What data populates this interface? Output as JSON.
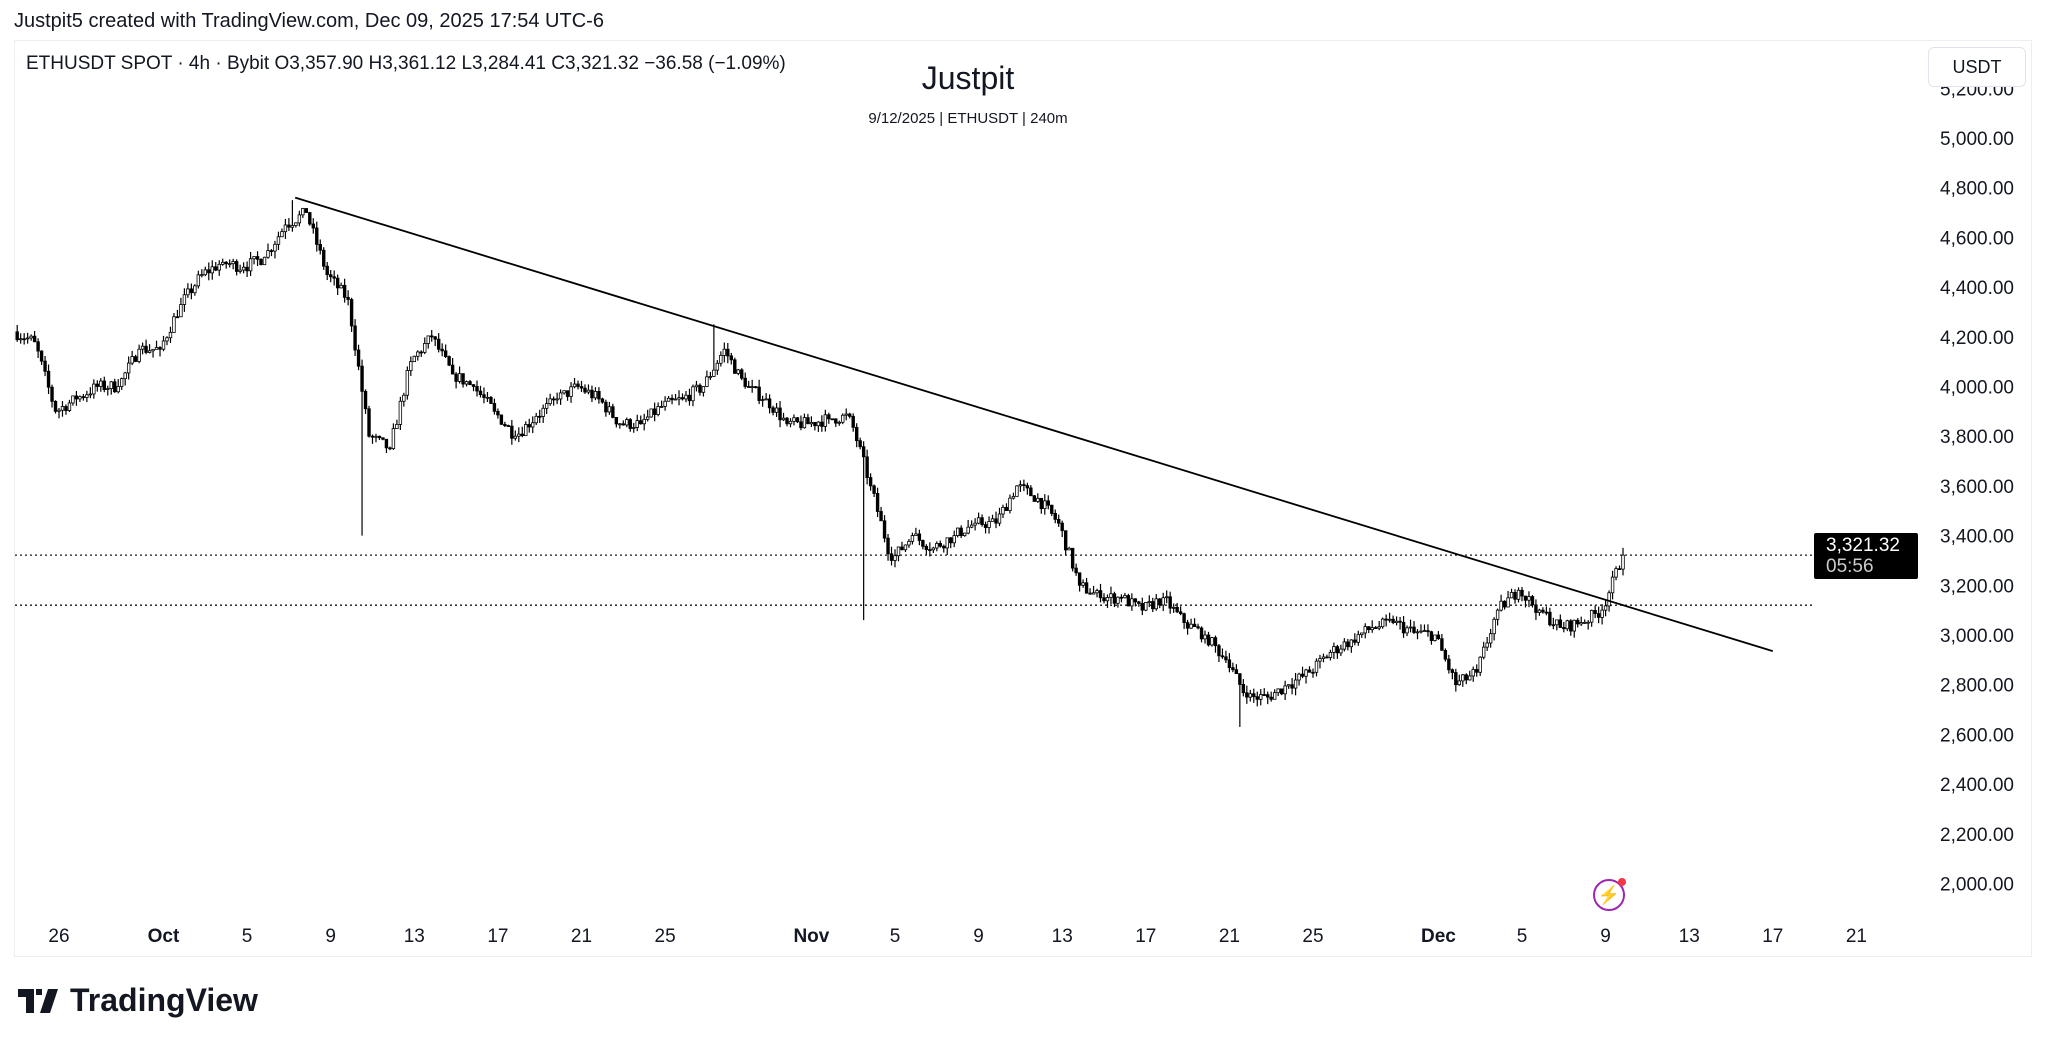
{
  "credit": "Justpit5 created with TradingView.com, Dec 09, 2025 17:54 UTC-6",
  "ohlc_line": "ETHUSDT SPOT · 4h · Bybit  O3,357.90  H3,361.12  L3,284.41  C3,321.32  −36.58 (−1.09%)",
  "currency_button": "USDT",
  "brand": "TradingView",
  "icons": {
    "logo": "tradingview-logo-icon",
    "bolt": "lightning-icon"
  },
  "chart_data": {
    "type": "candlestick",
    "title": "Justpit",
    "subtitle": "9/12/2025 | ETHUSDT | 240m",
    "symbol": "ETHUSDT",
    "interval": "4h",
    "ylim": [
      1900,
      5250
    ],
    "y_ticks": [
      "2,000.00",
      "2,200.00",
      "2,400.00",
      "2,600.00",
      "2,800.00",
      "3,000.00",
      "3,200.00",
      "3,400.00",
      "3,600.00",
      "3,800.00",
      "4,000.00",
      "4,200.00",
      "4,400.00",
      "4,600.00",
      "4,800.00",
      "5,000.00",
      "5,200.00"
    ],
    "x_ticks": [
      {
        "label": "26",
        "day": 0
      },
      {
        "label": "Oct",
        "day": 5,
        "bold": true
      },
      {
        "label": "5",
        "day": 9
      },
      {
        "label": "9",
        "day": 13
      },
      {
        "label": "13",
        "day": 17
      },
      {
        "label": "17",
        "day": 21
      },
      {
        "label": "21",
        "day": 25
      },
      {
        "label": "25",
        "day": 29
      },
      {
        "label": "Nov",
        "day": 36,
        "bold": true
      },
      {
        "label": "5",
        "day": 40
      },
      {
        "label": "9",
        "day": 44
      },
      {
        "label": "13",
        "day": 48
      },
      {
        "label": "17",
        "day": 52
      },
      {
        "label": "21",
        "day": 56
      },
      {
        "label": "25",
        "day": 60
      },
      {
        "label": "Dec",
        "day": 66,
        "bold": true
      },
      {
        "label": "5",
        "day": 70
      },
      {
        "label": "9",
        "day": 74
      },
      {
        "label": "13",
        "day": 78
      },
      {
        "label": "17",
        "day": 82
      },
      {
        "label": "21",
        "day": 86
      }
    ],
    "start_day_offset": -2,
    "daily_closes_from_sep24": [
      4180,
      3900,
      3950,
      4000,
      4000,
      4150,
      4150,
      4330,
      4450,
      4500,
      4480,
      4520,
      4650,
      4700,
      4450,
      4350,
      3800,
      3750,
      4100,
      4200,
      4050,
      4000,
      3900,
      3800,
      3880,
      3950,
      4000,
      3950,
      3850,
      3850,
      3920,
      3950,
      4000,
      4150,
      4000,
      3950,
      3850,
      3850,
      3870,
      3880,
      3600,
      3300,
      3400,
      3350,
      3400,
      3450,
      3450,
      3600,
      3550,
      3450,
      3200,
      3150,
      3150,
      3100,
      3150,
      3050,
      3000,
      2900,
      2750,
      2750,
      2800,
      2850,
      2930,
      2980,
      3030,
      3050,
      3010,
      3000,
      2800,
      2850,
      3100,
      3180,
      3100,
      3030,
      3050,
      3100,
      3321.32
    ],
    "notable_wicks": [
      {
        "day": 14.5,
        "low": 3400
      },
      {
        "day": 38.5,
        "low": 3060
      },
      {
        "day": 11.2,
        "high": 4750
      },
      {
        "day": 31.3,
        "high": 4250
      },
      {
        "day": 56.5,
        "low": 2630
      }
    ],
    "trendline": {
      "from": {
        "day": 11.3,
        "price": 4760
      },
      "to": {
        "day": 82,
        "price": 2935
      }
    },
    "horizontal_lines": [
      3321.32,
      3120
    ],
    "last_price": {
      "value": "3,321.32",
      "countdown": "05:56"
    }
  }
}
